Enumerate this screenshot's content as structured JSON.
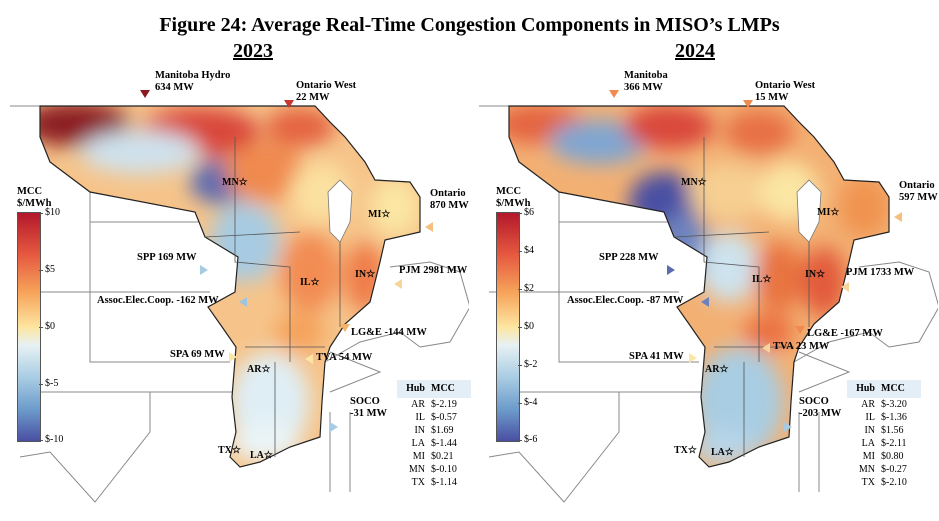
{
  "title": "Figure 24: Average Real-Time Congestion Components in MISO’s LMPs",
  "colors": {
    "hot": "#b3182b",
    "warm": "#f08a4f",
    "neutral": "#fde9a8",
    "cool": "#9cc6e0",
    "cold": "#4a4fa3",
    "table_header": "#e3eef7"
  },
  "panels": [
    {
      "year": "2023",
      "legend": {
        "title_line1": "MCC",
        "title_line2": "$/MWh",
        "ticks": [
          "$10",
          "$5",
          "$0",
          "$-5",
          "$-10"
        ]
      },
      "flows": [
        {
          "name": "Manitoba Hydro",
          "value": "634 MW"
        },
        {
          "name": "Ontario West",
          "value": "22 MW"
        },
        {
          "name": "Ontario",
          "value": "870 MW"
        },
        {
          "name": "SPP 169 MW"
        },
        {
          "name": "PJM 2981 MW"
        },
        {
          "name": "Assoc.Elec.Coop. -162 MW"
        },
        {
          "name": "LG&E -144 MW"
        },
        {
          "name": "SPA 69 MW"
        },
        {
          "name": "TVA 54 MW"
        },
        {
          "name": "SOCO",
          "value": "-31 MW"
        }
      ],
      "hubs": [
        "MN☆",
        "MI☆",
        "IL☆",
        "IN☆",
        "AR☆",
        "TX☆",
        "LA☆"
      ],
      "table": {
        "header": [
          "Hub",
          "MCC"
        ],
        "rows": [
          [
            "AR",
            "$-2.19"
          ],
          [
            "IL",
            "$-0.57"
          ],
          [
            "IN",
            "$1.69"
          ],
          [
            "LA",
            "$-1.44"
          ],
          [
            "MI",
            "$0.21"
          ],
          [
            "MN",
            "$-0.10"
          ],
          [
            "TX",
            "$-1.14"
          ]
        ]
      }
    },
    {
      "year": "2024",
      "legend": {
        "title_line1": "MCC",
        "title_line2": "$/MWh",
        "ticks": [
          "$6",
          "$4",
          "$2",
          "$0",
          "$-2",
          "$-4",
          "$-6"
        ]
      },
      "flows": [
        {
          "name": "Manitoba",
          "value": "366 MW"
        },
        {
          "name": "Ontario West",
          "value": "15 MW"
        },
        {
          "name": "Ontario",
          "value": "597 MW"
        },
        {
          "name": "SPP 228 MW"
        },
        {
          "name": "PJM 1733 MW"
        },
        {
          "name": "Assoc.Elec.Coop. -87 MW"
        },
        {
          "name": "LG&E -167 MW"
        },
        {
          "name": "SPA 41 MW"
        },
        {
          "name": "TVA 23 MW"
        },
        {
          "name": "SOCO",
          "value": "-203 MW"
        }
      ],
      "hubs": [
        "MN☆",
        "MI☆",
        "IL☆",
        "IN☆",
        "AR☆",
        "TX☆",
        "LA☆"
      ],
      "table": {
        "header": [
          "Hub",
          "MCC"
        ],
        "rows": [
          [
            "AR",
            "$-3.20"
          ],
          [
            "IL",
            "$-1.36"
          ],
          [
            "IN",
            "$1.56"
          ],
          [
            "LA",
            "$-2.11"
          ],
          [
            "MI",
            "$0.80"
          ],
          [
            "MN",
            "$-0.27"
          ],
          [
            "TX",
            "$-2.10"
          ]
        ]
      }
    }
  ]
}
